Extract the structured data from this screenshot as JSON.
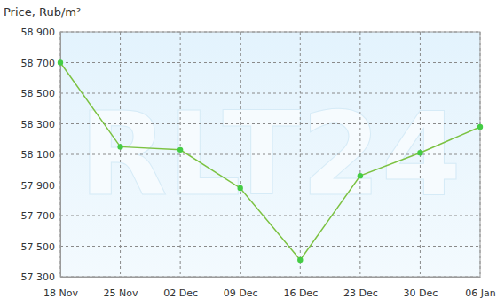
{
  "chart_data": {
    "type": "line",
    "title": "Price, Rub/m²",
    "annotations": [
      "RLT24"
    ],
    "categories": [
      "18 Nov",
      "25 Nov",
      "02 Dec",
      "09 Dec",
      "16 Dec",
      "23 Dec",
      "30 Dec",
      "06 Jan"
    ],
    "values": [
      58700,
      58150,
      58130,
      57880,
      57410,
      57960,
      58110,
      58280
    ],
    "color": "#7cc242",
    "marker": "circle",
    "ylim": [
      57300,
      58900
    ],
    "yticks": [
      {
        "value": 57300,
        "label": "57 300"
      },
      {
        "value": 57500,
        "label": "57 500"
      },
      {
        "value": 57700,
        "label": "57 700"
      },
      {
        "value": 57900,
        "label": "57 900"
      },
      {
        "value": 58100,
        "label": "58 100"
      },
      {
        "value": 58300,
        "label": "58 300"
      },
      {
        "value": 58500,
        "label": "58 500"
      },
      {
        "value": 58700,
        "label": "58 700"
      },
      {
        "value": 58900,
        "label": "58 900"
      }
    ],
    "grid": true
  }
}
